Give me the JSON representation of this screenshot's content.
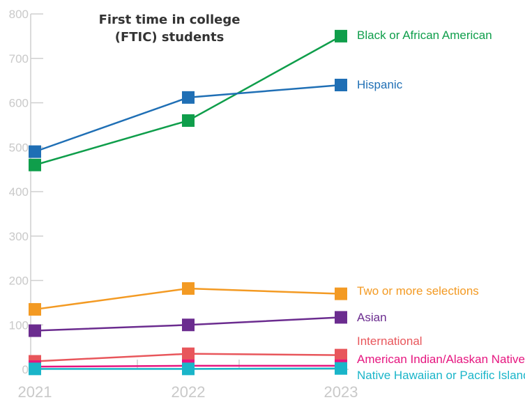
{
  "chart_data": {
    "type": "line",
    "title_lines": [
      "First time in college",
      "(FTIC) students"
    ],
    "x": [
      "2021",
      "2022",
      "2023"
    ],
    "ylim": [
      0,
      800
    ],
    "yticks": [
      "0",
      "100",
      "200",
      "300",
      "400",
      "500",
      "600",
      "700",
      "800"
    ],
    "grid": false,
    "series": [
      {
        "name": "Black or African American",
        "values": [
          460,
          560,
          750
        ],
        "color": "#0f9e4b"
      },
      {
        "name": "Hispanic",
        "values": [
          490,
          612,
          640
        ],
        "color": "#1f6fb5"
      },
      {
        "name": "Two or more selections",
        "values": [
          135,
          182,
          170
        ],
        "color": "#f39a23"
      },
      {
        "name": "Asian",
        "values": [
          87,
          100,
          117
        ],
        "color": "#6b2c8f"
      },
      {
        "name": "International",
        "values": [
          18,
          35,
          32
        ],
        "color": "#e8565b"
      },
      {
        "name": "American Indian/Alaskan Native",
        "values": [
          6,
          8,
          8
        ],
        "color": "#e6157f"
      },
      {
        "name": "Native Hawaiian or Pacific Islander",
        "values": [
          1,
          1,
          2
        ],
        "color": "#1ab5c9"
      }
    ]
  }
}
